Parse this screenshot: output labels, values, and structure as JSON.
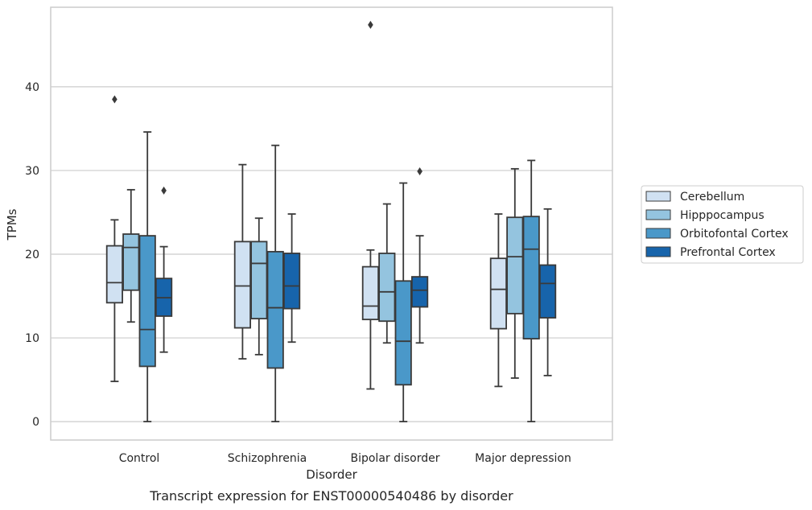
{
  "chart_data": {
    "type": "boxplot",
    "caption": "Transcript expression for ENST00000540486 by disorder",
    "xlabel": "Disorder",
    "ylabel": "TPMs",
    "categories": [
      "Control",
      "Schizophrenia",
      "Bipolar disorder",
      "Major depression"
    ],
    "ylim": [
      -2.2,
      49.5
    ],
    "yticks": [
      0,
      10,
      20,
      30,
      40
    ],
    "grid": "horizontal",
    "legend_position": "right",
    "series": [
      {
        "name": "Cerebellum",
        "color": "#d0e1f2",
        "boxes": [
          {
            "whislo": 4.8,
            "q1": 14.2,
            "med": 16.6,
            "q3": 21.0,
            "whishi": 24.1,
            "fliers": [
              38.5
            ]
          },
          {
            "whislo": 7.5,
            "q1": 11.2,
            "med": 16.2,
            "q3": 21.5,
            "whishi": 30.7,
            "fliers": []
          },
          {
            "whislo": 3.9,
            "q1": 12.2,
            "med": 13.8,
            "q3": 18.5,
            "whishi": 20.5,
            "fliers": [
              47.4
            ]
          },
          {
            "whislo": 4.2,
            "q1": 11.1,
            "med": 15.8,
            "q3": 19.5,
            "whishi": 24.8,
            "fliers": []
          }
        ]
      },
      {
        "name": "Hipppocampus",
        "color": "#94c4df",
        "boxes": [
          {
            "whislo": 11.9,
            "q1": 15.7,
            "med": 20.8,
            "q3": 22.4,
            "whishi": 27.7,
            "fliers": []
          },
          {
            "whislo": 8.0,
            "q1": 12.3,
            "med": 18.9,
            "q3": 21.5,
            "whishi": 24.3,
            "fliers": []
          },
          {
            "whislo": 9.4,
            "q1": 12.0,
            "med": 15.5,
            "q3": 20.1,
            "whishi": 26.0,
            "fliers": []
          },
          {
            "whislo": 5.2,
            "q1": 12.9,
            "med": 19.7,
            "q3": 24.4,
            "whishi": 30.2,
            "fliers": []
          }
        ]
      },
      {
        "name": "Orbitofontal Cortex",
        "color": "#4a98c9",
        "boxes": [
          {
            "whislo": 0.0,
            "q1": 6.6,
            "med": 11.0,
            "q3": 22.2,
            "whishi": 34.6,
            "fliers": []
          },
          {
            "whislo": 0.0,
            "q1": 6.4,
            "med": 13.6,
            "q3": 20.3,
            "whishi": 33.0,
            "fliers": []
          },
          {
            "whislo": 0.0,
            "q1": 4.4,
            "med": 9.6,
            "q3": 16.8,
            "whishi": 28.5,
            "fliers": []
          },
          {
            "whislo": 0.0,
            "q1": 9.9,
            "med": 20.6,
            "q3": 24.5,
            "whishi": 31.2,
            "fliers": []
          }
        ]
      },
      {
        "name": "Prefrontal Cortex",
        "color": "#1764ab",
        "boxes": [
          {
            "whislo": 8.3,
            "q1": 12.6,
            "med": 14.8,
            "q3": 17.1,
            "whishi": 20.9,
            "fliers": [
              27.6
            ]
          },
          {
            "whislo": 9.5,
            "q1": 13.5,
            "med": 16.2,
            "q3": 20.1,
            "whishi": 24.8,
            "fliers": []
          },
          {
            "whislo": 9.4,
            "q1": 13.7,
            "med": 15.7,
            "q3": 17.3,
            "whishi": 22.2,
            "fliers": [
              29.9
            ]
          },
          {
            "whislo": 5.5,
            "q1": 12.4,
            "med": 16.5,
            "q3": 18.7,
            "whishi": 25.4,
            "fliers": []
          }
        ]
      }
    ]
  }
}
